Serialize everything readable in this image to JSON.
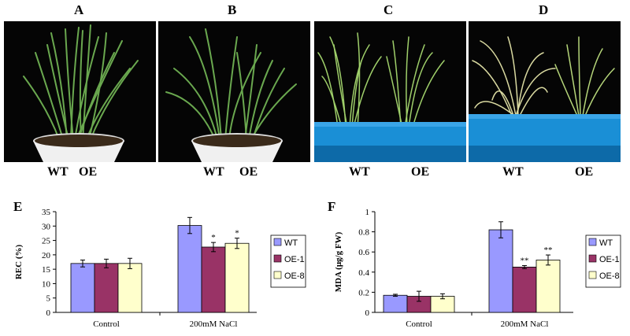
{
  "photos": {
    "A": {
      "letter": "A",
      "labels": [
        "WT",
        "OE"
      ]
    },
    "B": {
      "letter": "B",
      "labels": [
        "WT",
        "OE"
      ]
    },
    "C": {
      "letter": "C",
      "labels": [
        "WT",
        "OE"
      ]
    },
    "D": {
      "letter": "D",
      "labels": [
        "WT",
        "OE"
      ]
    }
  },
  "colors": {
    "WT": "#9999ff",
    "OE-1": "#993366",
    "OE-8": "#ffffcc",
    "background": "#000000",
    "tray": "#1a8fd6"
  },
  "chart_data": [
    {
      "type": "bar",
      "panel": "E",
      "ylabel": "REC (%)",
      "categories": [
        "Control",
        "200mM NaCl"
      ],
      "ylim": [
        0,
        35
      ],
      "yticks": [
        0,
        5,
        10,
        15,
        20,
        25,
        30,
        35
      ],
      "series": [
        {
          "name": "WT",
          "values": [
            17,
            30.2
          ],
          "errors": [
            1.2,
            2.8
          ],
          "sig": [
            "",
            ""
          ]
        },
        {
          "name": "OE-1",
          "values": [
            17,
            22.7
          ],
          "errors": [
            1.5,
            1.6
          ],
          "sig": [
            "",
            "*"
          ]
        },
        {
          "name": "OE-8",
          "values": [
            17,
            24
          ],
          "errors": [
            1.8,
            1.8
          ],
          "sig": [
            "",
            "*"
          ]
        }
      ],
      "legend": "right"
    },
    {
      "type": "bar",
      "panel": "F",
      "ylabel": "MDA (μg/g FW)",
      "categories": [
        "Control",
        "200mM NaCl"
      ],
      "ylim": [
        0,
        1
      ],
      "yticks": [
        0,
        0.2,
        0.4,
        0.6,
        0.8,
        1
      ],
      "series": [
        {
          "name": "WT",
          "values": [
            0.17,
            0.82
          ],
          "errors": [
            0.01,
            0.08
          ],
          "sig": [
            "",
            ""
          ]
        },
        {
          "name": "OE-1",
          "values": [
            0.16,
            0.45
          ],
          "errors": [
            0.05,
            0.015
          ],
          "sig": [
            "",
            "**"
          ]
        },
        {
          "name": "OE-8",
          "values": [
            0.16,
            0.52
          ],
          "errors": [
            0.025,
            0.05
          ],
          "sig": [
            "",
            "**"
          ]
        }
      ],
      "legend": "right"
    }
  ]
}
